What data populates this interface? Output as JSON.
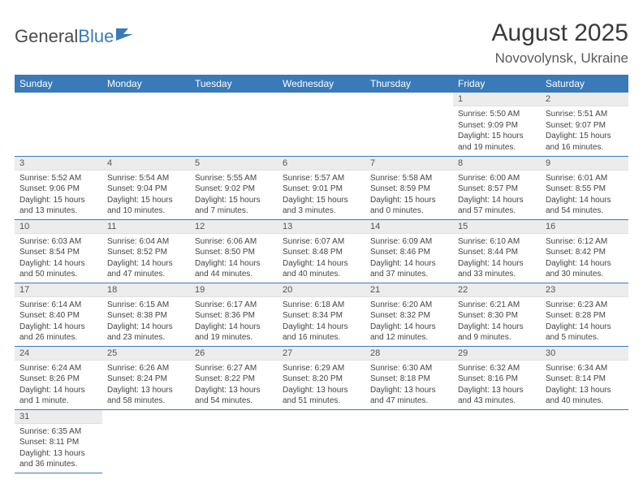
{
  "logo": {
    "text1": "General",
    "text2": "Blue"
  },
  "title": "August 2025",
  "location": "Novovolynsk, Ukraine",
  "colors": {
    "header_bg": "#3a7ab8",
    "header_fg": "#ffffff",
    "daynum_bg": "#ececec",
    "cell_border": "#3a7ab8",
    "text": "#444444"
  },
  "weekdays": [
    "Sunday",
    "Monday",
    "Tuesday",
    "Wednesday",
    "Thursday",
    "Friday",
    "Saturday"
  ],
  "first_day_index": 5,
  "days": [
    {
      "n": 1,
      "sr": "5:50 AM",
      "ss": "9:09 PM",
      "dl": "15 hours and 19 minutes."
    },
    {
      "n": 2,
      "sr": "5:51 AM",
      "ss": "9:07 PM",
      "dl": "15 hours and 16 minutes."
    },
    {
      "n": 3,
      "sr": "5:52 AM",
      "ss": "9:06 PM",
      "dl": "15 hours and 13 minutes."
    },
    {
      "n": 4,
      "sr": "5:54 AM",
      "ss": "9:04 PM",
      "dl": "15 hours and 10 minutes."
    },
    {
      "n": 5,
      "sr": "5:55 AM",
      "ss": "9:02 PM",
      "dl": "15 hours and 7 minutes."
    },
    {
      "n": 6,
      "sr": "5:57 AM",
      "ss": "9:01 PM",
      "dl": "15 hours and 3 minutes."
    },
    {
      "n": 7,
      "sr": "5:58 AM",
      "ss": "8:59 PM",
      "dl": "15 hours and 0 minutes."
    },
    {
      "n": 8,
      "sr": "6:00 AM",
      "ss": "8:57 PM",
      "dl": "14 hours and 57 minutes."
    },
    {
      "n": 9,
      "sr": "6:01 AM",
      "ss": "8:55 PM",
      "dl": "14 hours and 54 minutes."
    },
    {
      "n": 10,
      "sr": "6:03 AM",
      "ss": "8:54 PM",
      "dl": "14 hours and 50 minutes."
    },
    {
      "n": 11,
      "sr": "6:04 AM",
      "ss": "8:52 PM",
      "dl": "14 hours and 47 minutes."
    },
    {
      "n": 12,
      "sr": "6:06 AM",
      "ss": "8:50 PM",
      "dl": "14 hours and 44 minutes."
    },
    {
      "n": 13,
      "sr": "6:07 AM",
      "ss": "8:48 PM",
      "dl": "14 hours and 40 minutes."
    },
    {
      "n": 14,
      "sr": "6:09 AM",
      "ss": "8:46 PM",
      "dl": "14 hours and 37 minutes."
    },
    {
      "n": 15,
      "sr": "6:10 AM",
      "ss": "8:44 PM",
      "dl": "14 hours and 33 minutes."
    },
    {
      "n": 16,
      "sr": "6:12 AM",
      "ss": "8:42 PM",
      "dl": "14 hours and 30 minutes."
    },
    {
      "n": 17,
      "sr": "6:14 AM",
      "ss": "8:40 PM",
      "dl": "14 hours and 26 minutes."
    },
    {
      "n": 18,
      "sr": "6:15 AM",
      "ss": "8:38 PM",
      "dl": "14 hours and 23 minutes."
    },
    {
      "n": 19,
      "sr": "6:17 AM",
      "ss": "8:36 PM",
      "dl": "14 hours and 19 minutes."
    },
    {
      "n": 20,
      "sr": "6:18 AM",
      "ss": "8:34 PM",
      "dl": "14 hours and 16 minutes."
    },
    {
      "n": 21,
      "sr": "6:20 AM",
      "ss": "8:32 PM",
      "dl": "14 hours and 12 minutes."
    },
    {
      "n": 22,
      "sr": "6:21 AM",
      "ss": "8:30 PM",
      "dl": "14 hours and 9 minutes."
    },
    {
      "n": 23,
      "sr": "6:23 AM",
      "ss": "8:28 PM",
      "dl": "14 hours and 5 minutes."
    },
    {
      "n": 24,
      "sr": "6:24 AM",
      "ss": "8:26 PM",
      "dl": "14 hours and 1 minute."
    },
    {
      "n": 25,
      "sr": "6:26 AM",
      "ss": "8:24 PM",
      "dl": "13 hours and 58 minutes."
    },
    {
      "n": 26,
      "sr": "6:27 AM",
      "ss": "8:22 PM",
      "dl": "13 hours and 54 minutes."
    },
    {
      "n": 27,
      "sr": "6:29 AM",
      "ss": "8:20 PM",
      "dl": "13 hours and 51 minutes."
    },
    {
      "n": 28,
      "sr": "6:30 AM",
      "ss": "8:18 PM",
      "dl": "13 hours and 47 minutes."
    },
    {
      "n": 29,
      "sr": "6:32 AM",
      "ss": "8:16 PM",
      "dl": "13 hours and 43 minutes."
    },
    {
      "n": 30,
      "sr": "6:34 AM",
      "ss": "8:14 PM",
      "dl": "13 hours and 40 minutes."
    },
    {
      "n": 31,
      "sr": "6:35 AM",
      "ss": "8:11 PM",
      "dl": "13 hours and 36 minutes."
    }
  ],
  "labels": {
    "sunrise": "Sunrise:",
    "sunset": "Sunset:",
    "daylight": "Daylight:"
  }
}
